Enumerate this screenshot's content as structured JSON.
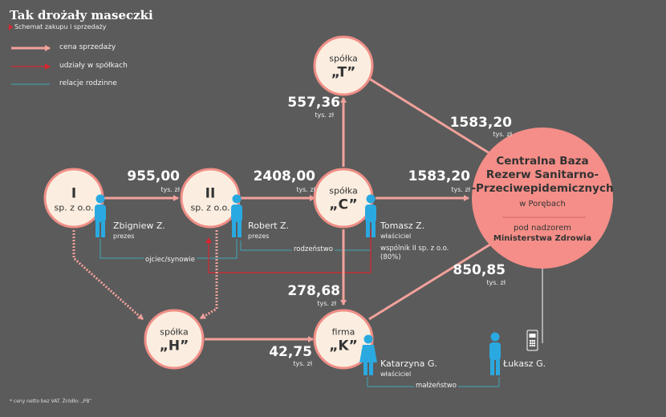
{
  "header": {
    "title": "Tak drożały maseczki",
    "subtitle": "Schemat zakupu i sprzedaży"
  },
  "legend": {
    "sale_price": "cena sprzedaży",
    "shares": "udziały w spółkach",
    "family": "relacje rodzinne"
  },
  "colors": {
    "background": "#5b5b5b",
    "node_fill": "#fbeee0",
    "node_stroke": "#f08f87",
    "arrow": "#f2a19b",
    "shares_line": "#d9262f",
    "family_line": "#3fa7b8",
    "person": "#2aa9e0",
    "central_fill": "#f58e88"
  },
  "nodes": {
    "I": {
      "line1": "I",
      "line2": "sp. z o.o."
    },
    "II": {
      "line1": "II",
      "line2": "sp. z o.o."
    },
    "C": {
      "line1": "spółka",
      "line2": "„C”"
    },
    "T": {
      "line1": "spółka",
      "line2": "„T”"
    },
    "H": {
      "line1": "spółka",
      "line2": "„H”"
    },
    "K": {
      "line1": "firma",
      "line2": "„K”"
    }
  },
  "central": {
    "line1": "Centralna Baza",
    "line2": "Rezerw Sanitarno-",
    "line3": "-Przeciwepidemicznych",
    "line4": "w Porębach",
    "line5": "pod nadzorem",
    "line6": "Ministerstwa Zdrowia"
  },
  "flows": {
    "i_to_ii": {
      "value": "955,00",
      "unit": "tys. zł"
    },
    "ii_to_c": {
      "value": "2408,00",
      "unit": "tys. zł"
    },
    "c_to_t": {
      "value": "557,36",
      "unit": "tys. zł"
    },
    "t_to_central": {
      "value": "1583,20",
      "unit": "tys. zł"
    },
    "c_to_central": {
      "value": "1583,20",
      "unit": "tys. zł"
    },
    "c_to_k": {
      "value": "278,68",
      "unit": "tys. zł"
    },
    "h_to_k": {
      "value": "42,75",
      "unit": "tys. zł"
    },
    "k_to_central": {
      "value": "850,85",
      "unit": "tys. zł"
    }
  },
  "people": {
    "zbigniew": {
      "name": "Zbigniew Z.",
      "role": "prezes"
    },
    "robert": {
      "name": "Robert Z.",
      "role": "prezes"
    },
    "tomasz": {
      "name": "Tomasz Z.",
      "role": "właściciel",
      "note1": "wspólnik II sp. z o.o.",
      "note2": "(80%)"
    },
    "katarzyna": {
      "name": "Katarzyna G.",
      "role": "właściciel"
    },
    "lukasz": {
      "name": "Łukasz G."
    }
  },
  "relations": {
    "father_sons": "ojciec/synowie",
    "siblings": "rodzeństwo",
    "marriage": "małżeństwo"
  },
  "footnote": "* ceny netto bez VAT. Źródło: „PB”"
}
